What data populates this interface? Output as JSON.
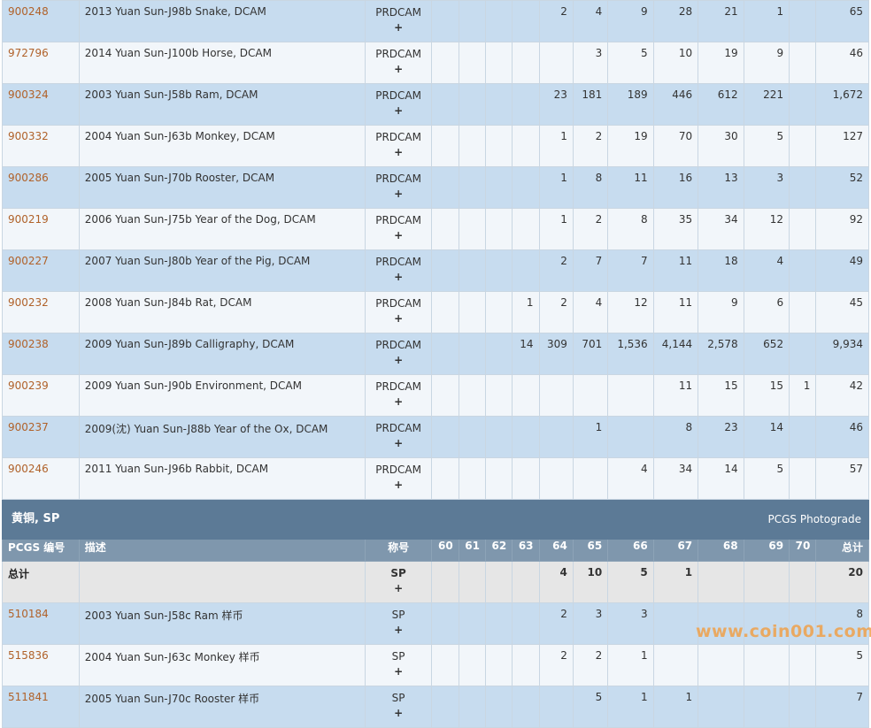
{
  "rows_top": [
    {
      "id": "900248",
      "desc": "2013 Yuan Sun-J98b Snake, DCAM",
      "des": "PRDCAM",
      "plus": "+",
      "g": [
        "",
        "",
        "",
        "",
        "2",
        "4",
        "9",
        "28",
        "21",
        "1",
        ""
      ],
      "total": "65"
    },
    {
      "id": "972796",
      "desc": "2014 Yuan Sun-J100b Horse, DCAM",
      "des": "PRDCAM",
      "plus": "+",
      "g": [
        "",
        "",
        "",
        "",
        "",
        "3",
        "5",
        "10",
        "19",
        "9",
        ""
      ],
      "total": "46"
    },
    {
      "id": "900324",
      "desc": "2003 Yuan Sun-J58b Ram, DCAM",
      "des": "PRDCAM",
      "plus": "+",
      "g": [
        "",
        "",
        "",
        "",
        "23",
        "181",
        "189",
        "446",
        "612",
        "221",
        ""
      ],
      "total": "1,672"
    },
    {
      "id": "900332",
      "desc": "2004 Yuan Sun-J63b Monkey, DCAM",
      "des": "PRDCAM",
      "plus": "+",
      "g": [
        "",
        "",
        "",
        "",
        "1",
        "2",
        "19",
        "70",
        "30",
        "5",
        ""
      ],
      "total": "127"
    },
    {
      "id": "900286",
      "desc": "2005 Yuan Sun-J70b Rooster, DCAM",
      "des": "PRDCAM",
      "plus": "+",
      "g": [
        "",
        "",
        "",
        "",
        "1",
        "8",
        "11",
        "16",
        "13",
        "3",
        ""
      ],
      "total": "52"
    },
    {
      "id": "900219",
      "desc": "2006 Yuan Sun-J75b Year of the Dog, DCAM",
      "des": "PRDCAM",
      "plus": "+",
      "g": [
        "",
        "",
        "",
        "",
        "1",
        "2",
        "8",
        "35",
        "34",
        "12",
        ""
      ],
      "total": "92"
    },
    {
      "id": "900227",
      "desc": "2007 Yuan Sun-J80b Year of the Pig, DCAM",
      "des": "PRDCAM",
      "plus": "+",
      "g": [
        "",
        "",
        "",
        "",
        "2",
        "7",
        "7",
        "11",
        "18",
        "4",
        ""
      ],
      "total": "49"
    },
    {
      "id": "900232",
      "desc": "2008 Yuan Sun-J84b Rat, DCAM",
      "des": "PRDCAM",
      "plus": "+",
      "g": [
        "",
        "",
        "",
        "1",
        "2",
        "4",
        "12",
        "11",
        "9",
        "6",
        ""
      ],
      "total": "45"
    },
    {
      "id": "900238",
      "desc": "2009 Yuan Sun-J89b Calligraphy, DCAM",
      "des": "PRDCAM",
      "plus": "+",
      "g": [
        "",
        "",
        "",
        "14",
        "309",
        "701",
        "1,536",
        "4,144",
        "2,578",
        "652",
        ""
      ],
      "total": "9,934"
    },
    {
      "id": "900239",
      "desc": "2009 Yuan Sun-J90b Environment, DCAM",
      "des": "PRDCAM",
      "plus": "+",
      "g": [
        "",
        "",
        "",
        "",
        "",
        "",
        "",
        "11",
        "15",
        "15",
        "1"
      ],
      "total": "42"
    },
    {
      "id": "900237",
      "desc": "2009(沈) Yuan Sun-J88b Year of the Ox, DCAM",
      "des": "PRDCAM",
      "plus": "+",
      "g": [
        "",
        "",
        "",
        "",
        "",
        "1",
        "",
        "8",
        "23",
        "14",
        ""
      ],
      "total": "46"
    },
    {
      "id": "900246",
      "desc": "2011 Yuan Sun-J96b Rabbit, DCAM",
      "des": "PRDCAM",
      "plus": "+",
      "g": [
        "",
        "",
        "",
        "",
        "",
        "",
        "4",
        "34",
        "14",
        "5",
        ""
      ],
      "total": "57"
    }
  ],
  "section": {
    "title": "黄铜, SP",
    "link": "PCGS Photograde"
  },
  "header": {
    "id": "PCGS 编号",
    "desc": "描述",
    "des": "称号",
    "grades": [
      "60",
      "61",
      "62",
      "63",
      "64",
      "65",
      "66",
      "67",
      "68",
      "69",
      "70"
    ],
    "total": "总计"
  },
  "total_row": {
    "label": "总计",
    "des": "SP",
    "plus": "+",
    "g": [
      "",
      "",
      "",
      "",
      "4",
      "10",
      "5",
      "1",
      "",
      "",
      ""
    ],
    "total": "20"
  },
  "rows_bottom": [
    {
      "id": "510184",
      "desc": "2003 Yuan Sun-J58c Ram 样币",
      "des": "SP",
      "plus": "+",
      "g": [
        "",
        "",
        "",
        "",
        "2",
        "3",
        "3",
        "",
        "",
        "",
        ""
      ],
      "total": "8"
    },
    {
      "id": "515836",
      "desc": "2004 Yuan Sun-J63c Monkey 样币",
      "des": "SP",
      "plus": "+",
      "g": [
        "",
        "",
        "",
        "",
        "2",
        "2",
        "1",
        "",
        "",
        "",
        ""
      ],
      "total": "5"
    },
    {
      "id": "511841",
      "desc": "2005 Yuan Sun-J70c Rooster 样币",
      "des": "SP",
      "plus": "+",
      "g": [
        "",
        "",
        "",
        "",
        "",
        "5",
        "1",
        "1",
        "",
        "",
        ""
      ],
      "total": "7"
    }
  ],
  "watermark": "www.coin001.com"
}
